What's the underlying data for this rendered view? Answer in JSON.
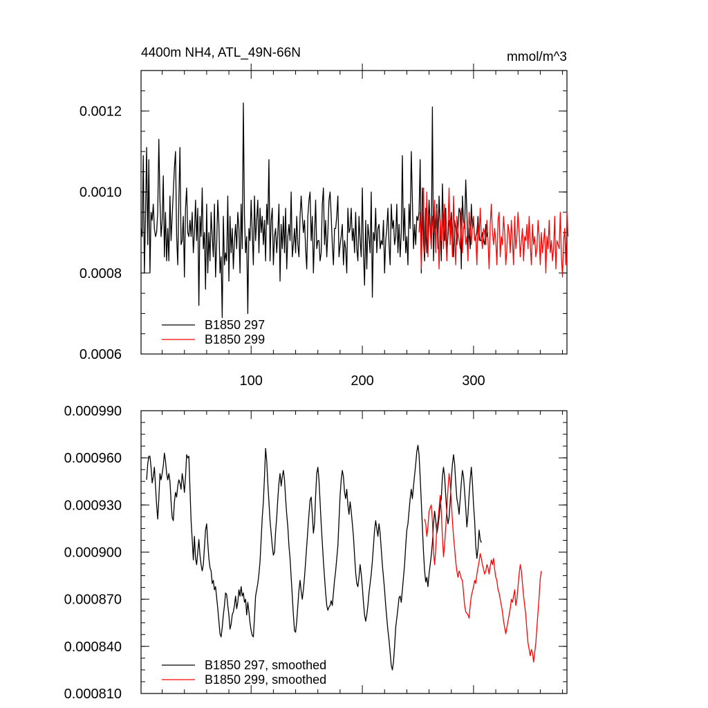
{
  "chart_data": [
    {
      "type": "line",
      "title": "4400m NH4, ATL_49N-66N",
      "units": "mmol/m^3",
      "xlim": [
        1,
        384
      ],
      "ylim": [
        0.0006,
        0.0013
      ],
      "x_ticks": [
        100,
        200,
        300
      ],
      "y_ticks": [
        0.0006,
        0.0008,
        0.001,
        0.0012
      ],
      "y_tick_labels": [
        "0.0006",
        "0.0008",
        "0.0010",
        "0.0012"
      ],
      "legend_position": "bottom-left",
      "series": [
        {
          "name": "B1850 297",
          "color": "#000000",
          "x_start": 1,
          "values": [
            0.00091,
            0.00089,
            0.00109,
            0.0008,
            0.00094,
            0.00111,
            0.00087,
            0.00108,
            0.0008,
            0.00095,
            0.00093,
            0.00097,
            0.00091,
            0.00089,
            0.0009,
            0.00095,
            0.00113,
            0.00098,
            0.00089,
            0.00093,
            0.00104,
            0.00084,
            0.00095,
            0.00083,
            0.00091,
            0.00083,
            0.00099,
            0.00088,
            0.00094,
            0.001,
            0.00106,
            0.0011,
            0.00089,
            0.00082,
            0.00098,
            0.00111,
            0.00087,
            0.00088,
            0.00094,
            0.00079,
            0.00096,
            0.00101,
            0.0009,
            0.00089,
            0.00093,
            0.00089,
            0.00095,
            0.00085,
            0.0009,
            0.00098,
            0.00088,
            0.00096,
            0.00072,
            0.00094,
            0.00089,
            0.00101,
            0.00086,
            0.0009,
            0.00076,
            0.00097,
            0.0008,
            0.0009,
            0.00083,
            0.00095,
            0.00089,
            0.00084,
            0.00097,
            0.00079,
            0.00087,
            0.00098,
            0.00092,
            0.0008,
            0.00084,
            0.00069,
            0.00094,
            0.00082,
            0.00085,
            0.00083,
            0.00099,
            0.00078,
            0.00094,
            0.00085,
            0.00091,
            0.00081,
            0.00088,
            0.00092,
            0.00086,
            0.00095,
            0.00091,
            0.0008,
            0.00097,
            0.00086,
            0.00122,
            0.00094,
            0.00085,
            0.00089,
            0.0007,
            0.00091,
            0.00088,
            0.00098,
            0.0009,
            0.00082,
            0.00099,
            0.00088,
            0.00093,
            0.00098,
            0.00085,
            0.00096,
            0.0009,
            0.00094,
            0.00087,
            0.00093,
            0.00083,
            0.00097,
            0.00092,
            0.00108,
            0.00083,
            0.00093,
            0.00096,
            0.00082,
            0.00089,
            0.00091,
            0.00085,
            0.0009,
            0.00097,
            0.00078,
            0.00092,
            0.00086,
            0.00094,
            0.00085,
            0.00096,
            0.00081,
            0.00089,
            0.00092,
            0.00088,
            0.001,
            0.00084,
            0.00087,
            0.00091,
            0.00085,
            0.00094,
            0.00087,
            0.00084,
            0.00094,
            0.00099,
            0.00094,
            0.0009,
            0.00093,
            0.00086,
            0.00081,
            0.00094,
            0.00098,
            0.001,
            0.00088,
            0.00094,
            0.0008,
            0.00089,
            0.00098,
            0.00086,
            0.00088,
            0.00088,
            0.00083,
            0.00085,
            0.00097,
            0.00101,
            0.00087,
            0.00093,
            0.00084,
            0.0009,
            0.00098,
            0.001,
            0.00094,
            0.00087,
            0.00082,
            0.00091,
            0.00091,
            0.00094,
            0.00099,
            0.00084,
            0.00087,
            0.00089,
            0.00092,
            0.00082,
            0.00088,
            0.00086,
            0.0008,
            0.00096,
            0.0009,
            0.00091,
            0.00096,
            0.00088,
            0.00091,
            0.00085,
            0.00095,
            0.00086,
            0.00083,
            0.00094,
            0.00088,
            0.00084,
            0.00101,
            0.00085,
            0.00077,
            0.00093,
            0.00081,
            0.00092,
            0.00089,
            0.00085,
            0.001,
            0.00074,
            0.0009,
            0.00088,
            0.00096,
            0.00085,
            0.00091,
            0.00092,
            0.00086,
            0.00088,
            0.00087,
            0.00093,
            0.0008,
            0.00088,
            0.00091,
            0.00096,
            0.00087,
            0.00082,
            0.00097,
            0.00091,
            0.00093,
            0.00087,
            0.00089,
            0.00097,
            0.00085,
            0.00092,
            0.00084,
            0.0009,
            0.00109,
            0.00088,
            0.00096,
            0.00085,
            0.00089,
            0.00082,
            0.00097,
            0.00091,
            0.0011,
            0.00098,
            0.00086,
            0.00092,
            0.00087,
            0.00094,
            0.00093,
            0.00095,
            0.00108,
            0.0008,
            0.00101,
            0.00088,
            0.00083,
            0.00096,
            0.00085,
            0.0009,
            0.00098,
            0.00092,
            0.00086,
            0.00121,
            0.00083,
            0.00094,
            0.00091,
            0.00097,
            0.00086,
            0.00099,
            0.00092,
            0.00083,
            0.00102,
            0.00092,
            0.00088,
            0.00096,
            0.00085,
            0.00089,
            0.00093,
            0.00091,
            0.00095,
            0.00089,
            0.00084,
            0.00093,
            0.00091,
            0.00087,
            0.00091,
            0.00096,
            0.00095,
            0.00081,
            0.00099,
            0.00093,
            0.00091,
            0.00103,
            0.00095,
            0.00086,
            0.00091,
            0.00086,
            0.00097,
            0.00091,
            0.00093,
            0.00088,
            0.00089,
            0.0009,
            0.00094,
            0.0009,
            0.00088,
            0.00088,
            0.0009,
            0.00088,
            0.00087,
            0.00092,
            0.00089,
            0.0009
          ]
        },
        {
          "name": "B1850 299",
          "color": "#ff0000",
          "x_start": 251,
          "values": [
            0.0009,
            0.00095,
            0.00081,
            0.00092,
            0.00101,
            0.00085,
            0.00088,
            0.001,
            0.00084,
            0.00094,
            0.00091,
            0.00086,
            0.00094,
            0.0009,
            0.00098,
            0.00085,
            0.00096,
            0.00092,
            0.00081,
            0.00093,
            0.00088,
            0.00095,
            0.00086,
            0.00097,
            0.00089,
            0.00083,
            0.00091,
            0.00101,
            0.00087,
            0.00093,
            0.00084,
            0.00099,
            0.00089,
            0.00082,
            0.00094,
            0.0009,
            0.00088,
            0.00086,
            0.00096,
            0.00085,
            0.00091,
            0.00093,
            0.00087,
            0.00089,
            0.00083,
            0.00095,
            0.00091,
            0.00087,
            0.00092,
            0.00094,
            0.00088,
            0.00089,
            0.00082,
            0.00093,
            0.00088,
            0.00096,
            0.00089,
            0.00086,
            0.00091,
            0.0009,
            0.00087,
            0.00093,
            0.00088,
            0.00081,
            0.00092,
            0.00097,
            0.0009,
            0.00087,
            0.00091,
            0.00088,
            0.00082,
            0.00093,
            0.00095,
            0.00084,
            0.00089,
            0.00087,
            0.00094,
            0.0009,
            0.00082,
            0.00086,
            0.00092,
            0.0009,
            0.00085,
            0.00093,
            0.00088,
            0.00082,
            0.00094,
            0.00086,
            0.00089,
            0.00095,
            0.0009,
            0.00084,
            0.00088,
            0.00091,
            0.00083,
            0.00089,
            0.00088,
            0.00092,
            0.00086,
            0.00094,
            0.00087,
            0.00082,
            0.00092,
            0.00087,
            0.00089,
            0.00084,
            0.00086,
            0.00093,
            0.00089,
            0.00082,
            0.0009,
            0.00085,
            0.00088,
            0.00091,
            0.0008,
            0.00089,
            0.00086,
            0.00093,
            0.00085,
            0.00088,
            0.00083,
            0.00086,
            0.00094,
            0.00081,
            0.00088,
            0.00087,
            0.00086,
            0.00095,
            0.00084,
            0.00079,
            0.00088,
            0.00091,
            0.00082,
            0.00095,
            0.00089
          ]
        }
      ]
    },
    {
      "type": "line",
      "xlim": [
        1,
        384
      ],
      "ylim": [
        0.00081,
        0.00099
      ],
      "y_ticks": [
        0.00081,
        0.00084,
        0.00087,
        0.0009,
        0.00093,
        0.00096,
        0.00099
      ],
      "y_tick_labels": [
        "0.000810",
        "0.000840",
        "0.000870",
        "0.000900",
        "0.000930",
        "0.000960",
        "0.000990"
      ],
      "legend_position": "bottom-left",
      "series": [
        {
          "name": "B1850 297, smoothed",
          "color": "#000000",
          "x_start": 6,
          "values": [
            0.000946,
            0.000956,
            0.000961,
            0.000961,
            0.000954,
            0.000944,
            0.000948,
            0.000954,
            0.000942,
            0.00093,
            0.000921,
            0.000934,
            0.00095,
            0.000946,
            0.00095,
            0.000955,
            0.000963,
            0.000958,
            0.00095,
            0.000946,
            0.00095,
            0.000945,
            0.000932,
            0.000922,
            0.00092,
            0.000932,
            0.000938,
            0.000935,
            0.000942,
            0.000946,
            0.000944,
            0.00094,
            0.00095,
            0.000945,
            0.000938,
            0.000948,
            0.000962,
            0.00096,
            0.000961,
            0.00094,
            0.00092,
            0.000908,
            0.000895,
            0.00091,
            0.000896,
            0.000892,
            0.0009,
            0.000908,
            0.000898,
            0.000892,
            0.000888,
            0.000892,
            0.000903,
            0.000914,
            0.000918,
            0.000906,
            0.000896,
            0.00089,
            0.000888,
            0.00088,
            0.000882,
            0.000876,
            0.000878,
            0.000871,
            0.000864,
            0.000856,
            0.000848,
            0.000846,
            0.000852,
            0.00086,
            0.000866,
            0.000874,
            0.000873,
            0.000866,
            0.00086,
            0.000851,
            0.000854,
            0.00086,
            0.000862,
            0.000866,
            0.000872,
            0.000864,
            0.000868,
            0.000876,
            0.000872,
            0.000878,
            0.000872,
            0.000874,
            0.000868,
            0.00087,
            0.00086,
            0.000868,
            0.000862,
            0.000855,
            0.00085,
            0.000847,
            0.000846,
            0.000858,
            0.000872,
            0.000876,
            0.00088,
            0.000886,
            0.000894,
            0.000908,
            0.000922,
            0.000932,
            0.000948,
            0.000966,
            0.000958,
            0.000944,
            0.000932,
            0.00092,
            0.000912,
            0.000904,
            0.000898,
            0.0009,
            0.000913,
            0.000922,
            0.000934,
            0.000944,
            0.00095,
            0.000942,
            0.000948,
            0.000952,
            0.000946,
            0.000934,
            0.000924,
            0.000916,
            0.000904,
            0.000896,
            0.000884,
            0.000872,
            0.00086,
            0.00085,
            0.000849,
            0.000856,
            0.000866,
            0.000876,
            0.000882,
            0.000875,
            0.00087,
            0.000876,
            0.000884,
            0.000894,
            0.000904,
            0.000914,
            0.000924,
            0.000933,
            0.000935,
            0.000924,
            0.000912,
            0.000918,
            0.000936,
            0.00095,
            0.000954,
            0.000946,
            0.000932,
            0.000918,
            0.000906,
            0.000894,
            0.000884,
            0.000874,
            0.000866,
            0.000863,
            0.000865,
            0.000866,
            0.000869,
            0.000866,
            0.000874,
            0.000882,
            0.000888,
            0.000896,
            0.000904,
            0.00092,
            0.000936,
            0.000946,
            0.000952,
            0.000948,
            0.000938,
            0.000934,
            0.00094,
            0.00093,
            0.000924,
            0.000932,
            0.000926,
            0.000918,
            0.00091,
            0.000898,
            0.000887,
            0.00088,
            0.000878,
            0.000884,
            0.000892,
            0.000886,
            0.000878,
            0.000868,
            0.00086,
            0.000856,
            0.00086,
            0.000866,
            0.000874,
            0.00088,
            0.000886,
            0.000894,
            0.000904,
            0.000914,
            0.00092,
            0.000915,
            0.00091,
            0.000918,
            0.000912,
            0.000902,
            0.000892,
            0.000884,
            0.000876,
            0.000866,
            0.000858,
            0.00085,
            0.000844,
            0.000836,
            0.000828,
            0.000825,
            0.00083,
            0.00084,
            0.000852,
            0.000858,
            0.000864,
            0.000871,
            0.000872,
            0.000868,
            0.000876,
            0.000884,
            0.000892,
            0.000904,
            0.000914,
            0.000918,
            0.000926,
            0.000934,
            0.00094,
            0.000934,
            0.000942,
            0.000949,
            0.000956,
            0.000964,
            0.000968,
            0.000962,
            0.000948,
            0.000932,
            0.000916,
            0.0009,
            0.000888,
            0.000881,
            0.000884,
            0.000878,
            0.000886,
            0.000892,
            0.000898,
            0.000906,
            0.000918,
            0.000926,
            0.00092,
            0.000912,
            0.000916,
            0.000922,
            0.00093,
            0.000934,
            0.000948,
            0.000954,
            0.000948,
            0.000936,
            0.000924,
            0.000918,
            0.000922,
            0.000932,
            0.000946,
            0.000956,
            0.000962,
            0.000956,
            0.000944,
            0.000934,
            0.00093,
            0.000924,
            0.000934,
            0.000944,
            0.000952,
            0.000948,
            0.000938,
            0.000928,
            0.000916,
            0.000924,
            0.000936,
            0.000946,
            0.000954,
            0.000944,
            0.00093,
            0.00092,
            0.000904,
            0.000896,
            0.000902,
            0.000914,
            0.000908,
            0.000906
          ]
        },
        {
          "name": "B1850 299, smoothed",
          "color": "#ff0000",
          "x_start": 256,
          "values": [
            0.000921,
            0.000918,
            0.00091,
            0.000916,
            0.000926,
            0.000928,
            0.00093,
            0.00092,
            0.0009,
            0.000892,
            0.000902,
            0.000916,
            0.00092,
            0.000928,
            0.000936,
            0.000926,
            0.00091,
            0.000897,
            0.000905,
            0.000916,
            0.000928,
            0.00094,
            0.00095,
            0.000944,
            0.000932,
            0.00092,
            0.00091,
            0.000902,
            0.000894,
            0.000888,
            0.000884,
            0.000888,
            0.000886,
            0.000883,
            0.000882,
            0.000874,
            0.000866,
            0.000862,
            0.000861,
            0.00086,
            0.000858,
            0.000866,
            0.000872,
            0.000875,
            0.000878,
            0.000882,
            0.00088,
            0.000886,
            0.00089,
            0.000894,
            0.000899,
            0.000896,
            0.000892,
            0.000889,
            0.000886,
            0.000888,
            0.000892,
            0.00089,
            0.000886,
            0.000891,
            0.000895,
            0.000892,
            0.000896,
            0.000889,
            0.000884,
            0.000882,
            0.000876,
            0.000874,
            0.00087,
            0.000866,
            0.000862,
            0.000856,
            0.000852,
            0.000848,
            0.000852,
            0.000856,
            0.00086,
            0.000864,
            0.00087,
            0.000868,
            0.000872,
            0.000876,
            0.000866,
            0.00087,
            0.000878,
            0.000886,
            0.000892,
            0.000888,
            0.00088,
            0.000872,
            0.000866,
            0.00086,
            0.00085,
            0.000842,
            0.000838,
            0.000834,
            0.000838,
            0.000836,
            0.00083,
            0.000836,
            0.000842,
            0.000852,
            0.000862,
            0.000872,
            0.000883,
            0.000888
          ]
        }
      ]
    }
  ]
}
